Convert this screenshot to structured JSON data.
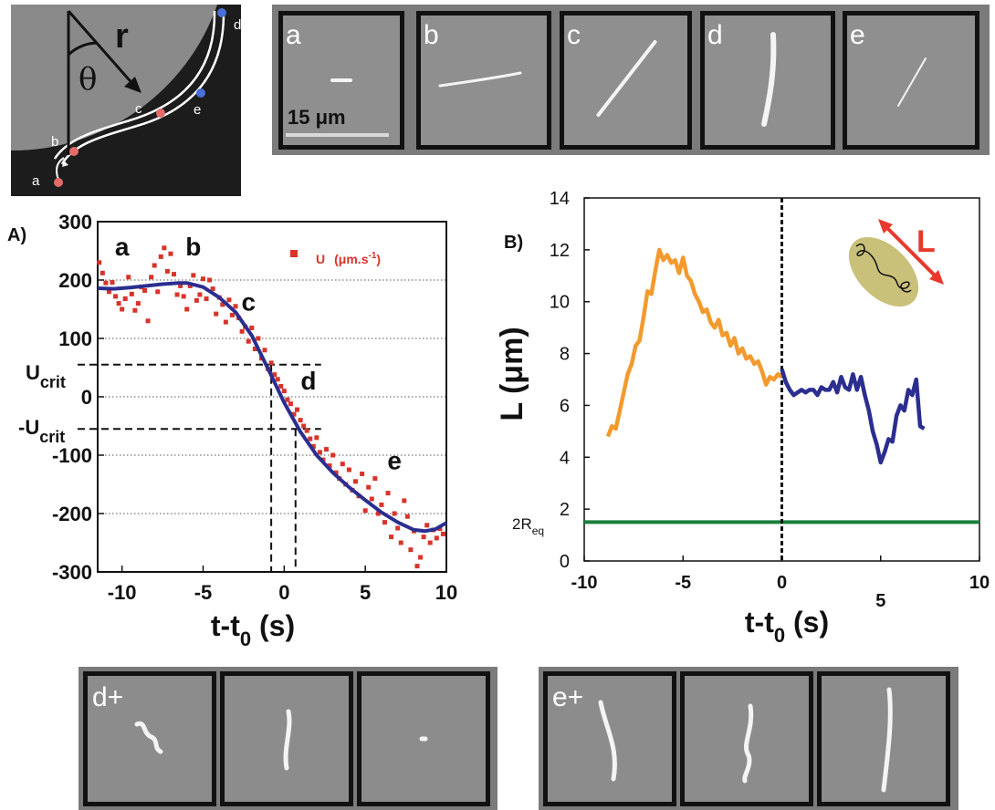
{
  "schematic": {
    "labels": [
      "a",
      "b",
      "c",
      "d",
      "e"
    ],
    "r_label": "r",
    "theta_label": "θ"
  },
  "strip_top": {
    "frames": [
      {
        "label": "a",
        "filament": "short-rod"
      },
      {
        "label": "b",
        "filament": "stretched-horizontal"
      },
      {
        "label": "c",
        "filament": "diagonal"
      },
      {
        "label": "d",
        "filament": "bright-vertical"
      },
      {
        "label": "e",
        "filament": "faint-diagonal"
      }
    ],
    "scale_label": "15 μm"
  },
  "strip_bottom": [
    {
      "label": "d+",
      "frames": [
        "coiled",
        "short-vertical",
        "dot"
      ]
    },
    {
      "label": "e+",
      "frames": [
        "vertical",
        "kinked-vertical",
        "long-vertical"
      ]
    }
  ],
  "chart_data": [
    {
      "type": "scatter",
      "panel_label": "A)",
      "xlabel_main": "t-t",
      "xlabel_sub": "0",
      "xlabel_unit": " (s)",
      "xlim": [
        -11.5,
        10
      ],
      "ylim": [
        -300,
        300
      ],
      "x_ticks": [
        -10,
        -5,
        0,
        5,
        10
      ],
      "y_ticks": [
        -300,
        -200,
        -100,
        0,
        100,
        200,
        300
      ],
      "grid": "horizontal dotted",
      "legend": {
        "label": "U",
        "unit_main": "(μm.s",
        "unit_sup": "-1",
        "unit_end": ")",
        "placement": "top-right"
      },
      "colors": {
        "points": "#d8342a",
        "fit": "#2b2e8f"
      },
      "u_crit": 55,
      "u_crit_label": "U",
      "u_crit_sub": "crit",
      "neg_u_crit_label": "-U",
      "neg_u_crit_sub": "crit",
      "crossings_x": [
        -0.8,
        0.7
      ],
      "annotations": [
        {
          "text": "a",
          "x": -10,
          "y": 255
        },
        {
          "text": "b",
          "x": -5.6,
          "y": 255
        },
        {
          "text": "c",
          "x": -2.2,
          "y": 160
        },
        {
          "text": "d",
          "x": 1.5,
          "y": 25
        },
        {
          "text": "e",
          "x": 6.8,
          "y": -112
        }
      ],
      "series": [
        {
          "kind": "points",
          "x": [
            -11.4,
            -11.2,
            -11.0,
            -10.8,
            -10.6,
            -10.4,
            -10.2,
            -10.0,
            -9.8,
            -9.6,
            -9.4,
            -9.2,
            -9.0,
            -8.8,
            -8.6,
            -8.4,
            -8.2,
            -8.0,
            -7.8,
            -7.6,
            -7.4,
            -7.2,
            -7.0,
            -6.8,
            -6.6,
            -6.4,
            -6.2,
            -6.0,
            -5.8,
            -5.6,
            -5.4,
            -5.2,
            -5.0,
            -4.8,
            -4.6,
            -4.4,
            -4.2,
            -4.0,
            -3.8,
            -3.6,
            -3.4,
            -3.2,
            -3.0,
            -2.8,
            -2.6,
            -2.4,
            -2.2,
            -2.0,
            -1.8,
            -1.6,
            -1.4,
            -1.2,
            -1.0,
            -0.8,
            -0.6,
            -0.4,
            -0.2,
            0.0,
            0.2,
            0.4,
            0.6,
            0.8,
            1.0,
            1.2,
            1.4,
            1.6,
            1.8,
            2.0,
            2.2,
            2.4,
            2.6,
            2.8,
            3.0,
            3.2,
            3.4,
            3.6,
            3.8,
            4.0,
            4.2,
            4.4,
            4.6,
            4.8,
            5.0,
            5.2,
            5.4,
            5.6,
            5.8,
            6.0,
            6.2,
            6.4,
            6.6,
            6.8,
            7.0,
            7.2,
            7.4,
            7.6,
            7.8,
            8.0,
            8.2,
            8.4,
            8.6,
            8.8,
            9.0,
            9.2,
            9.4,
            9.6,
            9.8
          ],
          "y": [
            230,
            212,
            195,
            180,
            196,
            172,
            160,
            150,
            168,
            205,
            176,
            148,
            160,
            188,
            182,
            130,
            205,
            225,
            180,
            240,
            255,
            215,
            245,
            210,
            175,
            190,
            172,
            150,
            190,
            208,
            165,
            175,
            202,
            168,
            200,
            185,
            142,
            170,
            158,
            128,
            166,
            140,
            155,
            135,
            112,
            120,
            95,
            118,
            82,
            100,
            66,
            80,
            48,
            58,
            38,
            30,
            18,
            10,
            -5,
            -12,
            -30,
            -22,
            -40,
            -50,
            -58,
            -72,
            -85,
            -70,
            -95,
            -108,
            -90,
            -118,
            -100,
            -130,
            -140,
            -115,
            -150,
            -125,
            -160,
            -145,
            -170,
            -132,
            -195,
            -155,
            -175,
            -140,
            -200,
            -185,
            -215,
            -165,
            -240,
            -200,
            -225,
            -250,
            -178,
            -205,
            -262,
            -230,
            -290,
            -275,
            -240,
            -220,
            -250,
            -228,
            -242,
            -226,
            -235
          ]
        },
        {
          "kind": "fit",
          "x": [
            -11.5,
            -10.5,
            -9.5,
            -8.5,
            -7.5,
            -6.5,
            -6,
            -5,
            -4,
            -3,
            -2,
            -1,
            0,
            1,
            2,
            3,
            4,
            5,
            6,
            7,
            8,
            8.7,
            9.3,
            10
          ],
          "y": [
            186,
            185,
            187,
            190,
            193,
            195,
            195,
            188,
            170,
            145,
            105,
            48,
            -10,
            -60,
            -100,
            -130,
            -155,
            -177,
            -198,
            -215,
            -228,
            -230,
            -227,
            -216
          ]
        }
      ]
    },
    {
      "type": "line",
      "panel_label": "B)",
      "xlabel_main": "t-t",
      "xlabel_sub": "0",
      "xlabel_unit": " (s)",
      "ylabel": "L (μm)",
      "xlim": [
        -10,
        10
      ],
      "ylim": [
        0,
        14
      ],
      "x_ticks": [
        -10,
        -5,
        0,
        10
      ],
      "x_tick_mid": 5,
      "y_ticks": [
        0,
        2,
        4,
        6,
        8,
        10,
        12,
        14
      ],
      "ref_line_main": "2R",
      "ref_line_sub": "eq",
      "ref_line_value": 1.5,
      "inset_label": "L",
      "colors": {
        "before": "#f39a2e",
        "after": "#2b2e8f",
        "ref": "#1a7f3c",
        "inset": "#e8392c"
      },
      "series": [
        {
          "kind": "before",
          "x": [
            -8.8,
            -8.6,
            -8.4,
            -8.2,
            -8.0,
            -7.8,
            -7.6,
            -7.4,
            -7.2,
            -7.0,
            -6.8,
            -6.6,
            -6.4,
            -6.2,
            -6.0,
            -5.8,
            -5.6,
            -5.4,
            -5.2,
            -5.0,
            -4.8,
            -4.6,
            -4.4,
            -4.2,
            -4.0,
            -3.8,
            -3.6,
            -3.4,
            -3.2,
            -3.0,
            -2.8,
            -2.6,
            -2.4,
            -2.2,
            -2.0,
            -1.8,
            -1.6,
            -1.4,
            -1.2,
            -1.0,
            -0.8,
            -0.6,
            -0.4,
            -0.2,
            0.0
          ],
          "y": [
            4.8,
            5.2,
            5.1,
            5.8,
            6.5,
            7.2,
            7.6,
            8.3,
            8.5,
            9.4,
            10.4,
            10.3,
            11.2,
            12.0,
            11.6,
            11.8,
            11.5,
            11.6,
            11.1,
            11.7,
            11.0,
            10.8,
            10.3,
            10.0,
            9.6,
            9.7,
            9.2,
            9.0,
            9.3,
            8.7,
            8.8,
            8.3,
            8.6,
            8.0,
            8.2,
            7.8,
            7.9,
            7.6,
            7.7,
            7.3,
            6.8,
            7.1,
            7.0,
            7.2,
            7.1
          ]
        },
        {
          "kind": "after",
          "x": [
            0.0,
            0.2,
            0.4,
            0.6,
            0.8,
            1.0,
            1.2,
            1.4,
            1.6,
            1.8,
            2.0,
            2.2,
            2.4,
            2.6,
            2.8,
            3.0,
            3.2,
            3.4,
            3.6,
            3.8,
            4.0,
            4.2,
            4.4,
            4.6,
            4.8,
            5.0,
            5.2,
            5.4,
            5.6,
            5.8,
            6.0,
            6.2,
            6.4,
            6.6,
            6.8,
            7.0,
            7.2
          ],
          "y": [
            7.4,
            6.9,
            6.6,
            6.4,
            6.5,
            6.6,
            6.5,
            6.6,
            6.6,
            6.4,
            6.7,
            6.6,
            6.6,
            6.9,
            6.5,
            7.1,
            6.7,
            6.6,
            7.2,
            6.6,
            7.1,
            6.4,
            5.8,
            5.0,
            4.5,
            3.8,
            4.2,
            4.7,
            4.6,
            5.6,
            6.0,
            5.8,
            6.6,
            6.4,
            7.0,
            5.2,
            5.1
          ]
        }
      ]
    }
  ]
}
